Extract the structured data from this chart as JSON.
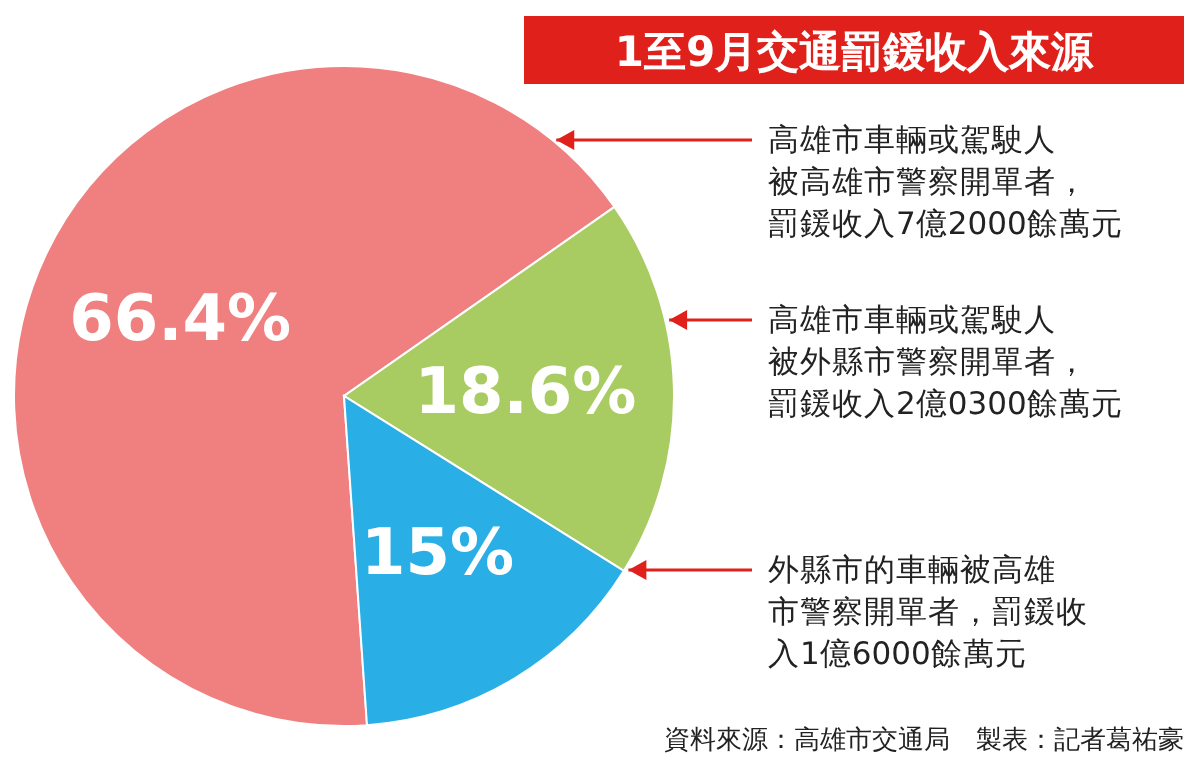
{
  "chart_data": {
    "type": "pie",
    "title": "1至9月交通罰鍰收入來源",
    "categories": [
      "高雄市車輛或駕駛人被高雄市警察開單者，罰鍰收入7億2000餘萬元",
      "高雄市車輛或駕駛人被外縣市警察開單者，罰鍰收入2億0300餘萬元",
      "外縣市的車輛被高雄市警察開單者，罰鍰收入1億6000餘萬元"
    ],
    "values": [
      66.4,
      18.6,
      15
    ],
    "value_labels": [
      "66.4%",
      "18.6%",
      "15%"
    ],
    "colors": [
      "#f08080",
      "#a9cc62",
      "#2aaee6"
    ],
    "annotations": [
      "資料來源：高雄市交通局　製表：記者葛祐豪"
    ]
  }
}
